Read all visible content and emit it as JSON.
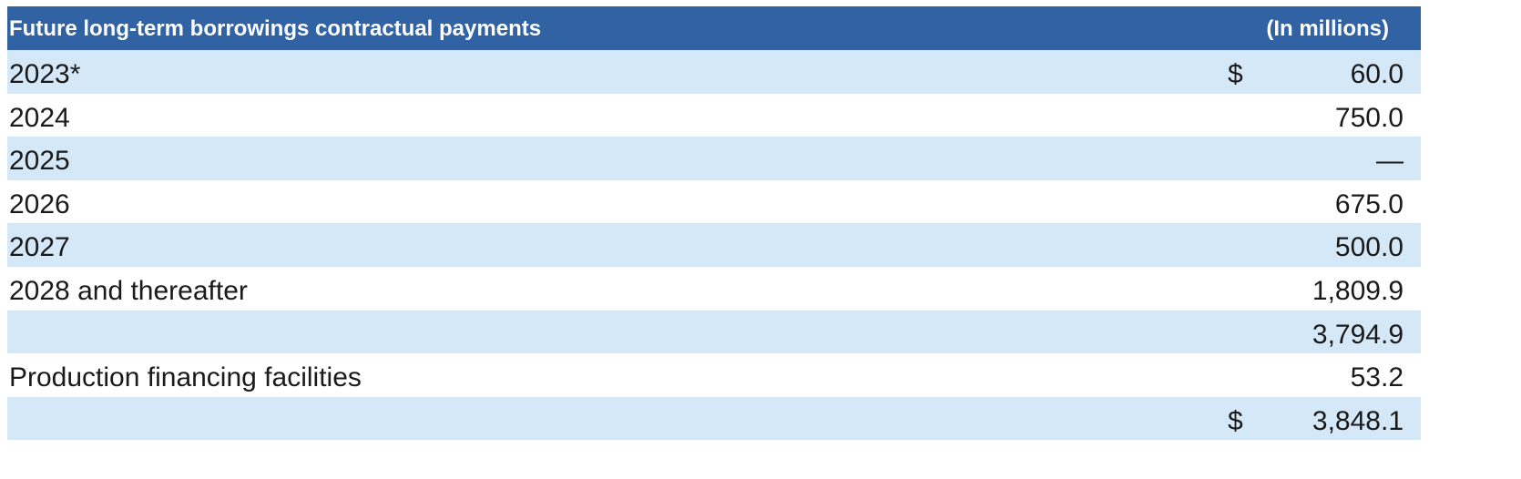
{
  "table": {
    "header": {
      "title": "Future long-term borrowings contractual payments",
      "unit": "(In millions)"
    },
    "rows": [
      {
        "label": "2023*",
        "currency": "$",
        "amount": "60.0",
        "shaded": true
      },
      {
        "label": "2024",
        "currency": "",
        "amount": "750.0",
        "shaded": false
      },
      {
        "label": "2025",
        "currency": "",
        "amount": "—",
        "shaded": true
      },
      {
        "label": "2026",
        "currency": "",
        "amount": "675.0",
        "shaded": false
      },
      {
        "label": "2027",
        "currency": "",
        "amount": "500.0",
        "shaded": true
      },
      {
        "label": "2028 and thereafter",
        "currency": "",
        "amount": "1,809.9",
        "shaded": false
      },
      {
        "label": "",
        "currency": "",
        "amount": "3,794.9",
        "shaded": true
      },
      {
        "label": "Production financing facilities",
        "currency": "",
        "amount": "53.2",
        "shaded": false
      },
      {
        "label": "",
        "currency": "$",
        "amount": "3,848.1",
        "shaded": true
      }
    ]
  },
  "colors": {
    "header_background": "#3162a3",
    "header_text": "#ffffff",
    "shaded_row": "#d4e8f7",
    "plain_row": "#ffffff",
    "body_text": "#1a1a1a"
  }
}
